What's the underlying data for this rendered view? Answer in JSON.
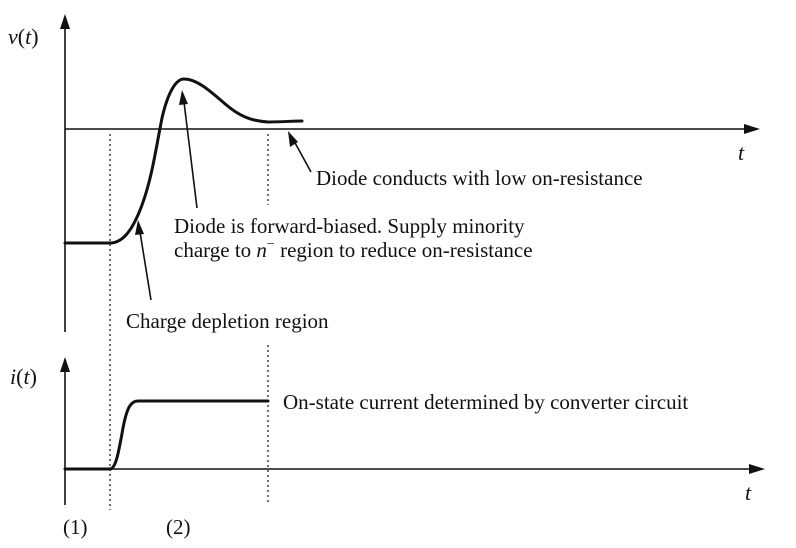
{
  "axes": {
    "voltage_label_prefix": "v(",
    "voltage_label_var": "t",
    "voltage_label_suffix": ")",
    "current_label_prefix": "i(",
    "current_label_var": "t",
    "current_label_suffix": ")",
    "time_label_top": "t",
    "time_label_bottom": "t"
  },
  "annotations": {
    "low_on_resistance": "Diode conducts with low on-resistance",
    "forward_biased_line1": "Diode is forward-biased. Supply minority",
    "forward_biased_line2_a": "charge to ",
    "forward_biased_line2_n": "n",
    "forward_biased_line2_sup": "−",
    "forward_biased_line2_b": " region to reduce on-resistance",
    "depletion": "Charge depletion region",
    "on_state_current": "On-state current determined by converter circuit"
  },
  "intervals": {
    "interval_1": "(1)",
    "interval_2": "(2)"
  },
  "colors": {
    "ink": "#111111",
    "background": "#ffffff"
  }
}
